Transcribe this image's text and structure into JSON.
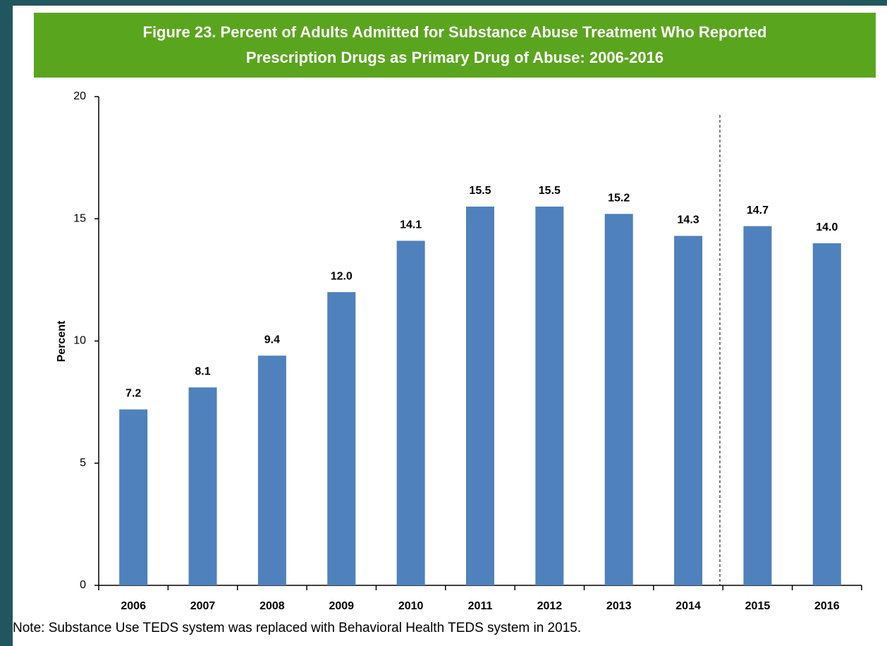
{
  "chart_data": {
    "type": "bar",
    "title": "Figure 23. Percent of Adults Admitted for Substance Abuse Treatment Who Reported Prescription Drugs as Primary Drug of Abuse: 2006-2016",
    "ylabel": "Percent",
    "note": "Note: Substance Use TEDS system was replaced with Behavioral Health TEDS system in 2015.",
    "categories": [
      "2006",
      "2007",
      "2008",
      "2009",
      "2010",
      "2011",
      "2012",
      "2013",
      "2014",
      "2015",
      "2016"
    ],
    "values": [
      7.2,
      8.1,
      9.4,
      12.0,
      14.1,
      15.5,
      15.5,
      15.2,
      14.3,
      14.7,
      14.0
    ],
    "value_labels": [
      "7.2",
      "8.1",
      "9.4",
      "12.0",
      "14.1",
      "15.5",
      "15.5",
      "15.2",
      "14.3",
      "14.7",
      "14.0"
    ],
    "color": "#4f81bd",
    "ylim": [
      0,
      20
    ],
    "yticks": [
      0,
      5,
      10,
      15,
      20
    ],
    "grid": false
  }
}
